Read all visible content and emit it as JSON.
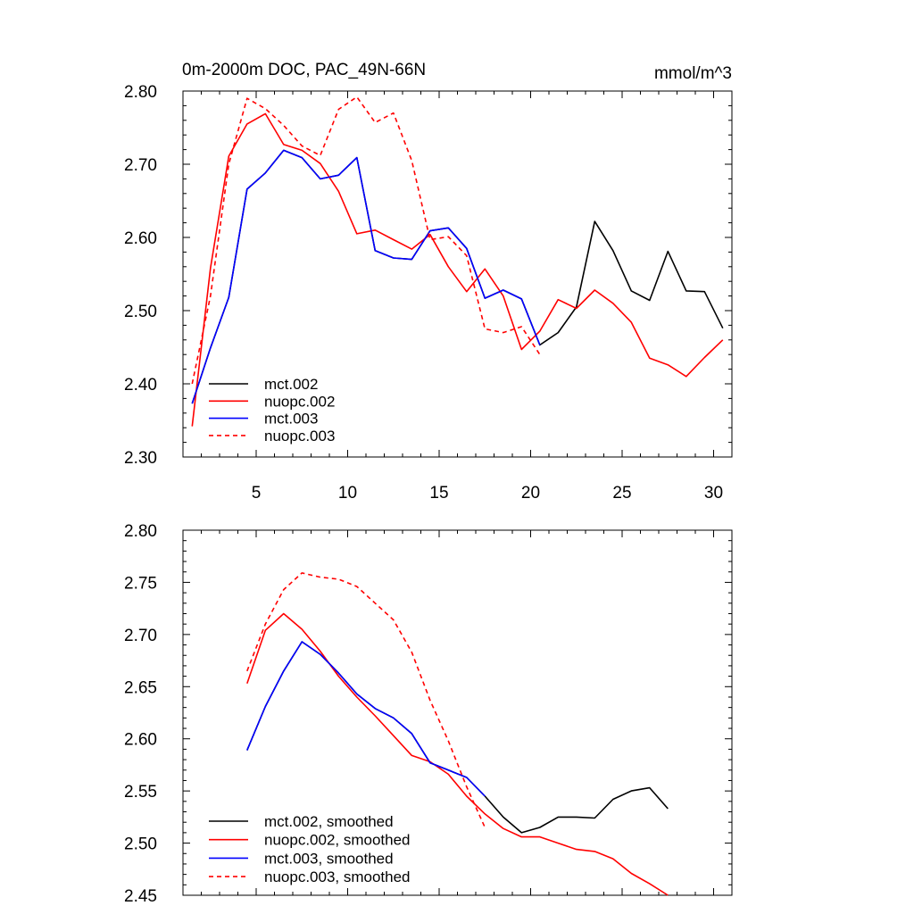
{
  "chart_data": [
    {
      "type": "line",
      "title": "0m-2000m DOC, PAC_49N-66N",
      "units": "mmol/m^3",
      "xlim": [
        1,
        31
      ],
      "ylim": [
        2.3,
        2.8
      ],
      "xticks": [
        5,
        10,
        15,
        20,
        25,
        30
      ],
      "xtick_labels": [
        "5",
        "10",
        "15",
        "20",
        "25",
        "30"
      ],
      "yticks": [
        2.3,
        2.4,
        2.5,
        2.6,
        2.7,
        2.8
      ],
      "ytick_labels": [
        "2.30",
        "2.40",
        "2.50",
        "2.60",
        "2.70",
        "2.80"
      ],
      "legend_position": "bottom-left",
      "series": [
        {
          "name": "mct.002",
          "color": "#000000",
          "dash": "solid",
          "x": [
            1.5,
            2.5,
            3.5,
            4.5,
            5.5,
            6.5,
            7.5,
            8.5,
            9.5,
            10.5,
            11.5,
            12.5,
            13.5,
            14.5,
            15.5,
            16.5,
            17.5,
            18.5,
            19.5,
            20.5,
            21.5,
            22.5,
            23.5,
            24.5,
            25.5,
            26.5,
            27.5,
            28.5,
            29.5,
            30.5
          ],
          "values": [
            2.373,
            2.449,
            2.518,
            2.666,
            2.688,
            2.719,
            2.709,
            2.68,
            2.685,
            2.709,
            2.582,
            2.572,
            2.57,
            2.609,
            2.613,
            2.585,
            2.517,
            2.528,
            2.516,
            2.453,
            2.47,
            2.505,
            2.622,
            2.582,
            2.527,
            2.514,
            2.581,
            2.527,
            2.526,
            2.476
          ]
        },
        {
          "name": "nuopc.002",
          "color": "#ff0000",
          "dash": "solid",
          "x": [
            1.5,
            2.5,
            3.5,
            4.5,
            5.5,
            6.5,
            7.5,
            8.5,
            9.5,
            10.5,
            11.5,
            12.5,
            13.5,
            14.5,
            15.5,
            16.5,
            17.5,
            18.5,
            19.5,
            20.5,
            21.5,
            22.5,
            23.5,
            24.5,
            25.5,
            26.5,
            27.5,
            28.5,
            29.5,
            30.5
          ],
          "values": [
            2.342,
            2.558,
            2.711,
            2.755,
            2.769,
            2.727,
            2.719,
            2.701,
            2.663,
            2.605,
            2.61,
            2.597,
            2.584,
            2.604,
            2.56,
            2.526,
            2.557,
            2.52,
            2.447,
            2.472,
            2.515,
            2.503,
            2.528,
            2.51,
            2.484,
            2.435,
            2.426,
            2.41,
            2.436,
            2.46
          ]
        },
        {
          "name": "mct.003",
          "color": "#0000ff",
          "dash": "solid",
          "x": [
            1.5,
            2.5,
            3.5,
            4.5,
            5.5,
            6.5,
            7.5,
            8.5,
            9.5,
            10.5,
            11.5,
            12.5,
            13.5,
            14.5,
            15.5,
            16.5,
            17.5,
            18.5,
            19.5,
            20.5
          ],
          "values": [
            2.373,
            2.449,
            2.518,
            2.666,
            2.688,
            2.719,
            2.709,
            2.68,
            2.685,
            2.709,
            2.582,
            2.572,
            2.57,
            2.609,
            2.613,
            2.585,
            2.517,
            2.528,
            2.516,
            2.453
          ]
        },
        {
          "name": "nuopc.003",
          "color": "#ff0000",
          "dash": "dashed",
          "x": [
            1.5,
            2.5,
            3.5,
            4.5,
            5.5,
            6.5,
            7.5,
            8.5,
            9.5,
            10.5,
            11.5,
            12.5,
            13.5,
            14.5,
            15.5,
            16.5,
            17.5,
            18.5,
            19.5,
            20.5
          ],
          "values": [
            2.4,
            2.52,
            2.7,
            2.79,
            2.776,
            2.753,
            2.725,
            2.712,
            2.775,
            2.792,
            2.757,
            2.77,
            2.705,
            2.597,
            2.601,
            2.575,
            2.475,
            2.47,
            2.478,
            2.44
          ]
        }
      ]
    },
    {
      "type": "line",
      "title": "",
      "xlim": [
        1,
        31
      ],
      "ylim": [
        2.45,
        2.8
      ],
      "xticks": [
        5,
        10,
        15,
        20,
        25,
        30
      ],
      "xtick_labels": [],
      "yticks": [
        2.45,
        2.5,
        2.55,
        2.6,
        2.65,
        2.7,
        2.75,
        2.8
      ],
      "ytick_labels": [
        "2.45",
        "2.50",
        "2.55",
        "2.60",
        "2.65",
        "2.70",
        "2.75",
        "2.80"
      ],
      "legend_position": "bottom-left",
      "series": [
        {
          "name": "mct.002, smoothed",
          "color": "#000000",
          "dash": "solid",
          "x": [
            4.5,
            5.5,
            6.5,
            7.5,
            8.5,
            9.5,
            10.5,
            11.5,
            12.5,
            13.5,
            14.5,
            15.5,
            16.5,
            17.5,
            18.5,
            19.5,
            20.5,
            21.5,
            22.5,
            23.5,
            24.5,
            25.5,
            26.5,
            27.5
          ],
          "values": [
            2.589,
            2.631,
            2.665,
            2.693,
            2.681,
            2.663,
            2.643,
            2.629,
            2.62,
            2.605,
            2.577,
            2.57,
            2.563,
            2.545,
            2.525,
            2.51,
            2.515,
            2.525,
            2.525,
            2.524,
            2.542,
            2.55,
            2.553,
            2.533
          ]
        },
        {
          "name": "nuopc.002, smoothed",
          "color": "#ff0000",
          "dash": "solid",
          "x": [
            4.5,
            5.5,
            6.5,
            7.5,
            8.5,
            9.5,
            10.5,
            11.5,
            12.5,
            13.5,
            14.5,
            15.5,
            16.5,
            17.5,
            18.5,
            19.5,
            20.5,
            21.5,
            22.5,
            23.5,
            24.5,
            25.5,
            26.5,
            27.5
          ],
          "values": [
            2.653,
            2.704,
            2.72,
            2.705,
            2.684,
            2.66,
            2.64,
            2.622,
            2.603,
            2.584,
            2.578,
            2.566,
            2.545,
            2.528,
            2.514,
            2.506,
            2.506,
            2.5,
            2.494,
            2.492,
            2.485,
            2.471,
            2.461,
            2.45
          ]
        },
        {
          "name": "mct.003, smoothed",
          "color": "#0000ff",
          "dash": "solid",
          "x": [
            4.5,
            5.5,
            6.5,
            7.5,
            8.5,
            9.5,
            10.5,
            11.5,
            12.5,
            13.5,
            14.5,
            15.5,
            16.5,
            17.5
          ],
          "values": [
            2.589,
            2.631,
            2.665,
            2.693,
            2.681,
            2.663,
            2.643,
            2.629,
            2.62,
            2.605,
            2.577,
            2.57,
            2.563,
            2.545
          ]
        },
        {
          "name": "nuopc.003, smoothed",
          "color": "#ff0000",
          "dash": "dashed",
          "x": [
            4.5,
            5.5,
            6.5,
            7.5,
            8.5,
            9.5,
            10.5,
            11.5,
            12.5,
            13.5,
            14.5,
            15.5,
            16.5,
            17.5
          ],
          "values": [
            2.665,
            2.71,
            2.743,
            2.759,
            2.755,
            2.753,
            2.746,
            2.73,
            2.714,
            2.683,
            2.637,
            2.598,
            2.554,
            2.515
          ]
        }
      ]
    }
  ]
}
